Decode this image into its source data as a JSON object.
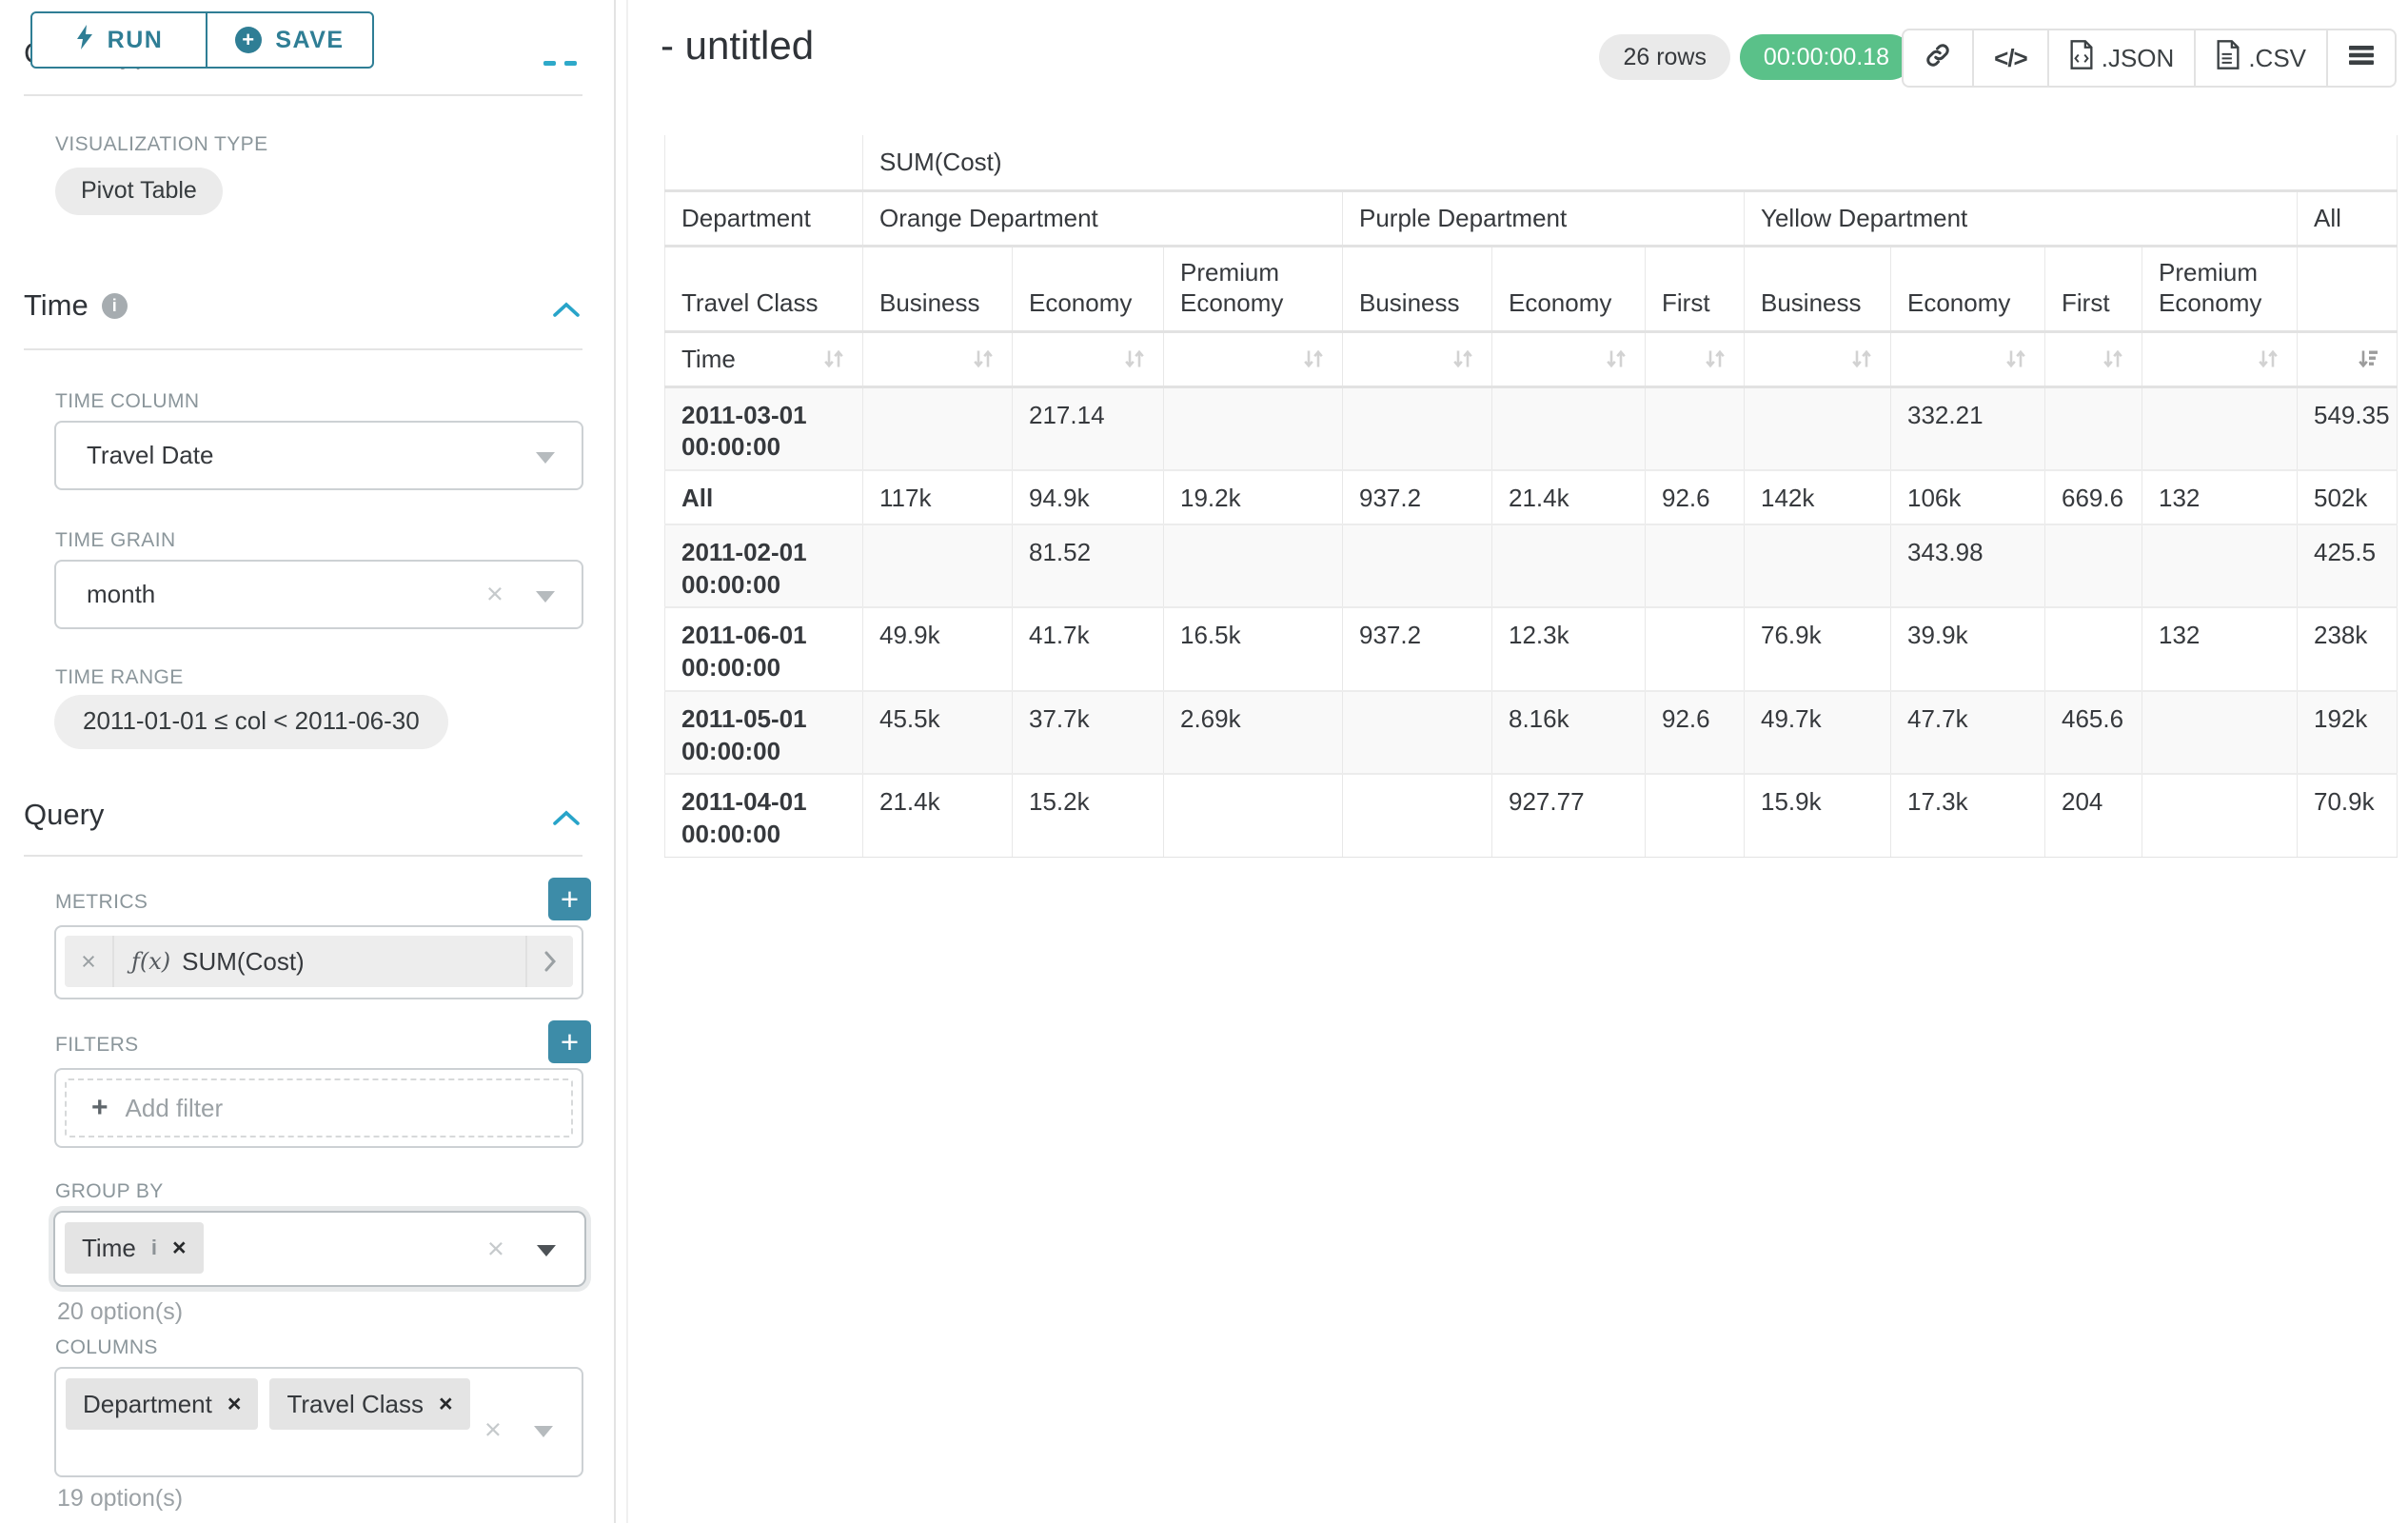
{
  "colors": {
    "teal": "#2f7e95",
    "plus_teal": "#3d8ca8",
    "accent_blue": "#28a4c9",
    "success_green": "#5ac189"
  },
  "sidebar": {
    "run_label": "RUN",
    "save_label": "SAVE",
    "chart_type_heading": "Chart Type",
    "visualization_type": {
      "label": "VISUALIZATION TYPE",
      "value": "Pivot Table"
    },
    "time_section": {
      "title": "Time",
      "time_column": {
        "label": "TIME COLUMN",
        "value": "Travel Date"
      },
      "time_grain": {
        "label": "TIME GRAIN",
        "value": "month"
      },
      "time_range": {
        "label": "TIME RANGE",
        "value": "2011-01-01 ≤ col < 2011-06-30"
      }
    },
    "query_section": {
      "title": "Query",
      "metrics": {
        "label": "METRICS",
        "fx": "ƒ(x)",
        "value": "SUM(Cost)"
      },
      "filters": {
        "label": "FILTERS",
        "placeholder": "Add filter"
      },
      "group_by": {
        "label": "GROUP BY",
        "tags": [
          {
            "label": "Time",
            "info": true
          }
        ],
        "options_hint": "20 option(s)"
      },
      "columns": {
        "label": "COLUMNS",
        "tags": [
          {
            "label": "Department",
            "info": false
          },
          {
            "label": "Travel Class",
            "info": false
          }
        ],
        "options_hint": "19 option(s)"
      }
    }
  },
  "main": {
    "title": "- untitled",
    "rows_badge": "26 rows",
    "timer": "00:00:00.18",
    "toolbar": {
      "code_label": "</>",
      "json_label": ".JSON",
      "csv_label": ".CSV"
    }
  },
  "chart_data": {
    "type": "table",
    "title": "SUM(Cost)",
    "row_dimension": "Time",
    "column_dimensions": [
      "Department",
      "Travel Class"
    ],
    "column_groups": [
      {
        "department": "Orange Department",
        "classes": [
          "Business",
          "Economy",
          "Premium Economy"
        ]
      },
      {
        "department": "Purple Department",
        "classes": [
          "Business",
          "Economy",
          "First"
        ]
      },
      {
        "department": "Yellow Department",
        "classes": [
          "Business",
          "Economy",
          "First",
          "Premium Economy"
        ]
      },
      {
        "department": "All",
        "classes": [
          ""
        ]
      }
    ],
    "sorted_column": "All",
    "sort_direction": "descending",
    "rows": [
      {
        "time": "2011-03-01 00:00:00",
        "values": [
          "",
          "217.14",
          "",
          "",
          "",
          "",
          "",
          "332.21",
          "",
          "",
          "549.35"
        ]
      },
      {
        "time": "All",
        "values": [
          "117k",
          "94.9k",
          "19.2k",
          "937.2",
          "21.4k",
          "92.6",
          "142k",
          "106k",
          "669.6",
          "132",
          "502k"
        ]
      },
      {
        "time": "2011-02-01 00:00:00",
        "values": [
          "",
          "81.52",
          "",
          "",
          "",
          "",
          "",
          "343.98",
          "",
          "",
          "425.5"
        ]
      },
      {
        "time": "2011-06-01 00:00:00",
        "values": [
          "49.9k",
          "41.7k",
          "16.5k",
          "937.2",
          "12.3k",
          "",
          "76.9k",
          "39.9k",
          "",
          "132",
          "238k"
        ]
      },
      {
        "time": "2011-05-01 00:00:00",
        "values": [
          "45.5k",
          "37.7k",
          "2.69k",
          "",
          "8.16k",
          "92.6",
          "49.7k",
          "47.7k",
          "465.6",
          "",
          "192k"
        ]
      },
      {
        "time": "2011-04-01 00:00:00",
        "values": [
          "21.4k",
          "15.2k",
          "",
          "",
          "927.77",
          "",
          "15.9k",
          "17.3k",
          "204",
          "",
          "70.9k"
        ]
      }
    ]
  }
}
